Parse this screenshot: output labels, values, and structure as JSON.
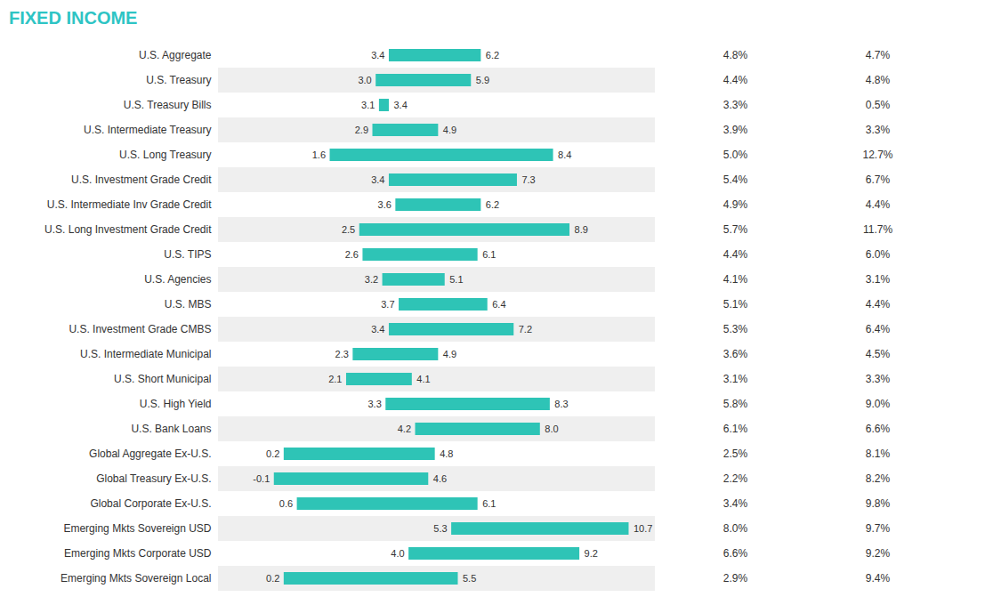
{
  "chart_data": {
    "type": "bar",
    "orientation": "horizontal",
    "title": "FIXED INCOME",
    "categories": [
      "U.S. Aggregate",
      "U.S. Treasury",
      "U.S. Treasury Bills",
      "U.S. Intermediate Treasury",
      "U.S. Long Treasury",
      "U.S. Investment Grade Credit",
      "U.S. Intermediate Inv Grade Credit",
      "U.S. Long Investment Grade Credit",
      "U.S. TIPS",
      "U.S. Agencies",
      "U.S. MBS",
      "U.S. Investment Grade CMBS",
      "U.S. Intermediate Municipal",
      "U.S. Short Municipal",
      "U.S. High Yield",
      "U.S. Bank Loans",
      "Global Aggregate Ex-U.S.",
      "Global Treasury Ex-U.S.",
      "Global Corporate Ex-U.S.",
      "Emerging Mkts Sovereign USD",
      "Emerging Mkts Corporate USD",
      "Emerging Mkts Sovereign Local"
    ],
    "starts": [
      3.4,
      3.0,
      3.1,
      2.9,
      1.6,
      3.4,
      3.6,
      2.5,
      2.6,
      3.2,
      3.7,
      3.4,
      2.3,
      2.1,
      3.3,
      4.2,
      0.2,
      -0.1,
      0.6,
      5.3,
      4.0,
      0.2
    ],
    "start_labels": [
      "3.4",
      "3.0",
      "3.1",
      "2.9",
      "1.6",
      "3.4",
      "3.6",
      "2.5",
      "2.6",
      "3.2",
      "3.7",
      "3.4",
      "2.3",
      "2.1",
      "3.3",
      "4.2",
      "0.2",
      "-0.1",
      "0.6",
      "5.3",
      "4.0",
      "0.2"
    ],
    "values": [
      6.2,
      5.9,
      3.4,
      4.9,
      8.4,
      7.3,
      6.2,
      8.9,
      6.1,
      5.1,
      6.4,
      7.2,
      4.9,
      4.1,
      8.3,
      8.0,
      4.8,
      4.6,
      6.1,
      10.7,
      9.2,
      5.5
    ],
    "value_labels": [
      "6.2",
      "5.9",
      "3.4",
      "4.9",
      "8.4",
      "7.3",
      "6.2",
      "8.9",
      "6.1",
      "5.1",
      "6.4",
      "7.2",
      "4.9",
      "4.1",
      "8.3",
      "8.0",
      "4.8",
      "4.6",
      "6.1",
      "10.7",
      "9.2",
      "5.5"
    ],
    "table_columns": [
      [
        "4.8%",
        "4.4%",
        "3.3%",
        "3.9%",
        "5.0%",
        "5.4%",
        "4.9%",
        "5.7%",
        "4.4%",
        "4.1%",
        "5.1%",
        "5.3%",
        "3.6%",
        "3.1%",
        "5.8%",
        "6.1%",
        "2.5%",
        "2.2%",
        "3.4%",
        "8.0%",
        "6.6%",
        "2.9%"
      ],
      [
        "4.7%",
        "4.8%",
        "0.5%",
        "3.3%",
        "12.7%",
        "6.7%",
        "4.4%",
        "11.7%",
        "6.0%",
        "3.1%",
        "4.4%",
        "6.4%",
        "4.5%",
        "3.3%",
        "9.0%",
        "6.6%",
        "8.1%",
        "8.2%",
        "9.8%",
        "9.7%",
        "9.2%",
        "9.4%"
      ]
    ],
    "color": "#2ec4b6",
    "xlim": [
      -1.8,
      11.5
    ],
    "data_labels": true,
    "tick_labels": "y",
    "grid": false
  }
}
